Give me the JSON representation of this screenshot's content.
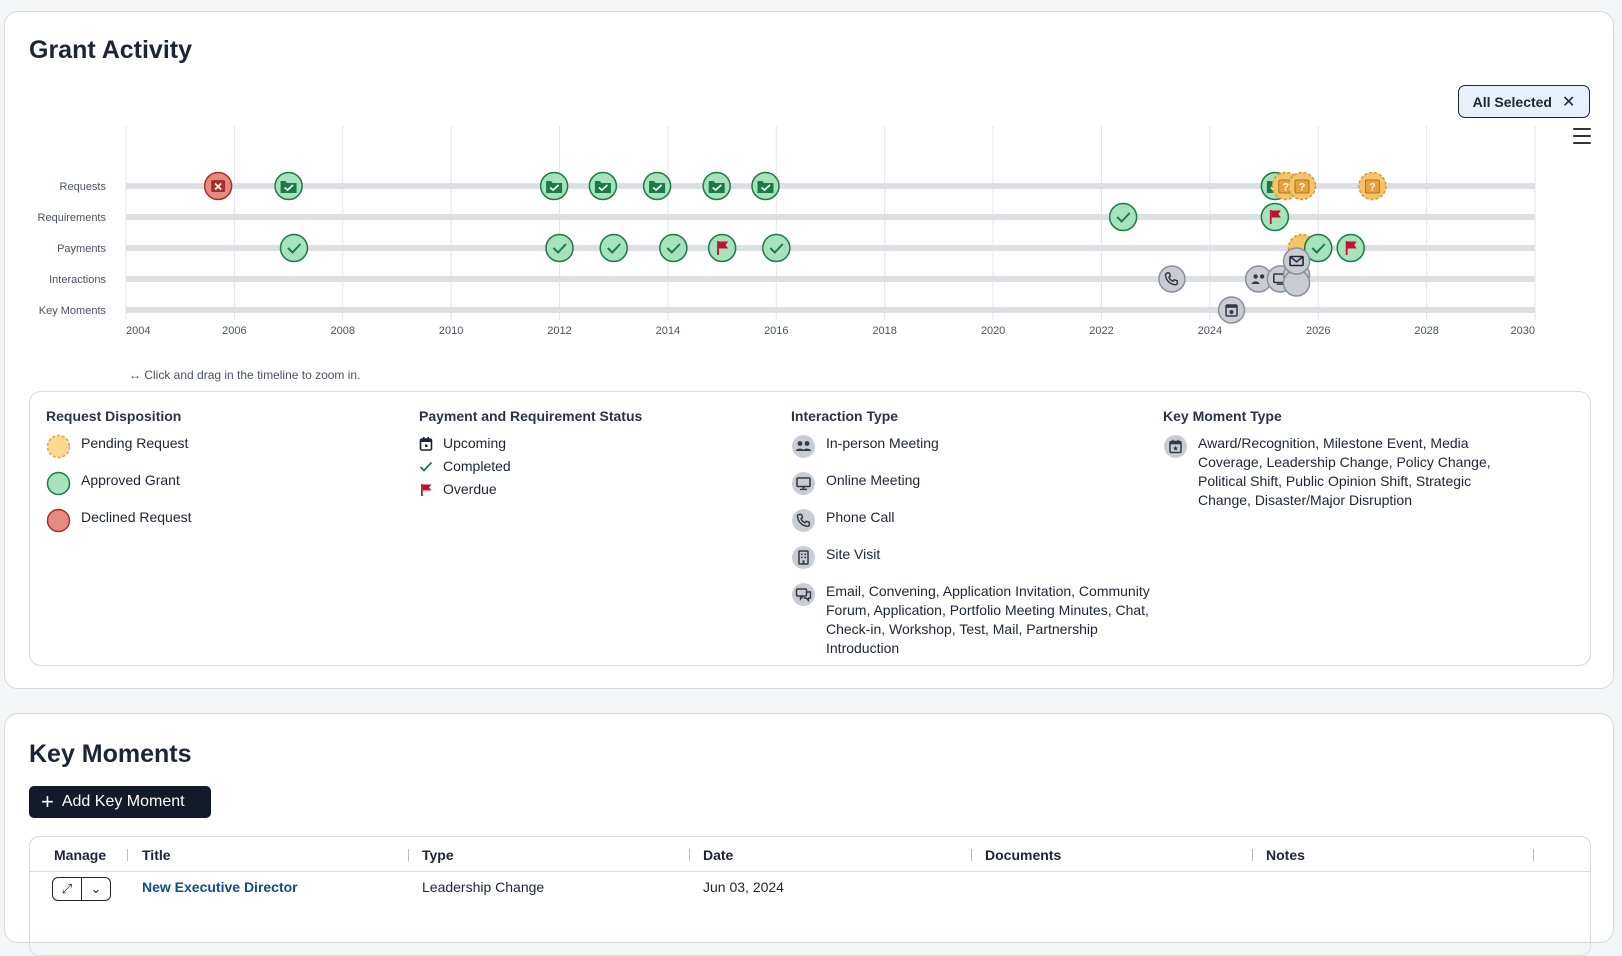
{
  "grant_activity": {
    "title": "Grant Activity",
    "filter_chip": {
      "label": "All Selected",
      "close_glyph": "✕"
    },
    "menu_icon": "hamburger-menu-icon",
    "zoom_hint": "↔ Click and drag in the timeline to zoom in.",
    "timeline": {
      "x_range": [
        2004,
        2030
      ],
      "x_ticks": [
        "2004",
        "2006",
        "2008",
        "2010",
        "2012",
        "2014",
        "2016",
        "2018",
        "2020",
        "2022",
        "2024",
        "2026",
        "2028",
        "2030"
      ],
      "rows": [
        "Requests",
        "Requirements",
        "Payments",
        "Interactions",
        "Key Moments"
      ],
      "colors": {
        "approved_fill": "#a6e3bd",
        "approved_stroke": "#1b7a46",
        "pending_fill": "#f5c46a",
        "pending_stroke": "#d9952e",
        "declined_fill": "#e58a7e",
        "declined_stroke": "#a8302a",
        "interaction_fill": "#c9cdd3",
        "interaction_stroke": "#8a9099",
        "flag": "#c4102f",
        "track": "#dcdfe3"
      },
      "events": [
        {
          "row": "Requests",
          "year": 2005.7,
          "kind": "declined",
          "icon": "declined-x-icon"
        },
        {
          "row": "Requests",
          "year": 2007.0,
          "kind": "approved",
          "icon": "folder-check-icon"
        },
        {
          "row": "Requests",
          "year": 2011.9,
          "kind": "approved",
          "icon": "folder-check-icon"
        },
        {
          "row": "Requests",
          "year": 2012.8,
          "kind": "approved",
          "icon": "folder-check-icon"
        },
        {
          "row": "Requests",
          "year": 2013.8,
          "kind": "approved",
          "icon": "folder-check-icon"
        },
        {
          "row": "Requests",
          "year": 2014.9,
          "kind": "approved",
          "icon": "folder-check-icon"
        },
        {
          "row": "Requests",
          "year": 2015.8,
          "kind": "approved",
          "icon": "folder-check-icon"
        },
        {
          "row": "Requests",
          "year": 2025.2,
          "kind": "approved",
          "icon": "folder-check-icon"
        },
        {
          "row": "Requests",
          "year": 2025.4,
          "kind": "pending",
          "icon": "question-icon"
        },
        {
          "row": "Requests",
          "year": 2025.7,
          "kind": "pending",
          "icon": "question-icon"
        },
        {
          "row": "Requests",
          "year": 2027.0,
          "kind": "pending",
          "icon": "question-icon"
        },
        {
          "row": "Requirements",
          "year": 2022.4,
          "kind": "completed",
          "icon": "check-icon"
        },
        {
          "row": "Requirements",
          "year": 2025.2,
          "kind": "overdue",
          "icon": "flag-icon"
        },
        {
          "row": "Payments",
          "year": 2007.1,
          "kind": "completed",
          "icon": "check-icon"
        },
        {
          "row": "Payments",
          "year": 2012.0,
          "kind": "completed",
          "icon": "check-icon"
        },
        {
          "row": "Payments",
          "year": 2013.0,
          "kind": "completed",
          "icon": "check-icon"
        },
        {
          "row": "Payments",
          "year": 2014.1,
          "kind": "completed",
          "icon": "check-icon"
        },
        {
          "row": "Payments",
          "year": 2015.0,
          "kind": "overdue",
          "icon": "flag-icon"
        },
        {
          "row": "Payments",
          "year": 2016.0,
          "kind": "completed",
          "icon": "check-icon"
        },
        {
          "row": "Payments",
          "year": 2025.7,
          "kind": "pending",
          "icon": "payment-pending-icon"
        },
        {
          "row": "Payments",
          "year": 2026.0,
          "kind": "completed",
          "icon": "check-icon"
        },
        {
          "row": "Payments",
          "year": 2026.6,
          "kind": "overdue",
          "icon": "flag-icon"
        },
        {
          "row": "Interactions",
          "year": 2023.3,
          "kind": "interaction",
          "icon": "phone-icon"
        },
        {
          "row": "Interactions",
          "year": 2024.9,
          "kind": "interaction",
          "icon": "people-icon"
        },
        {
          "row": "Interactions",
          "year": 2025.3,
          "kind": "interaction",
          "icon": "monitor-icon"
        },
        {
          "row": "Interactions",
          "year": 2025.6,
          "kind": "interaction",
          "icon": "stacked-icon"
        },
        {
          "row": "Interactions",
          "year": 2025.6,
          "kind": "interaction",
          "icon": "stacked-icon"
        },
        {
          "row": "Interactions",
          "year": 2025.6,
          "kind": "interaction",
          "icon": "envelope-icon"
        },
        {
          "row": "Key Moments",
          "year": 2024.4,
          "kind": "interaction",
          "icon": "calendar-star-icon"
        }
      ]
    },
    "legend": {
      "request_disposition": {
        "title": "Request Disposition",
        "items": [
          {
            "label": "Pending Request",
            "icon": "pending-circle-icon"
          },
          {
            "label": "Approved Grant",
            "icon": "approved-circle-icon"
          },
          {
            "label": "Declined Request",
            "icon": "declined-circle-icon"
          }
        ]
      },
      "payment_status": {
        "title": "Payment and Requirement Status",
        "items": [
          {
            "label": "Upcoming",
            "icon": "calendar-icon"
          },
          {
            "label": "Completed",
            "icon": "check-icon"
          },
          {
            "label": "Overdue",
            "icon": "flag-icon"
          }
        ]
      },
      "interaction_type": {
        "title": "Interaction Type",
        "items": [
          {
            "label": "In-person Meeting",
            "icon": "people-icon"
          },
          {
            "label": "Online Meeting",
            "icon": "monitor-icon"
          },
          {
            "label": "Phone Call",
            "icon": "phone-icon"
          },
          {
            "label": "Site Visit",
            "icon": "building-icon"
          },
          {
            "label": "Email, Convening, Application Invitation, Community Forum, Application, Portfolio Meeting Minutes, Chat, Check-in, Workshop, Test, Mail, Partnership Introduction",
            "icon": "chat-icon"
          }
        ]
      },
      "key_moment_type": {
        "title": "Key Moment Type",
        "items": [
          {
            "label": "Award/Recognition, Milestone Event, Media Coverage, Leadership Change, Policy Change, Political Shift, Public Opinion Shift, Strategic Change, Disaster/Major Disruption",
            "icon": "calendar-star-icon"
          }
        ]
      }
    }
  },
  "key_moments": {
    "title": "Key Moments",
    "add_button_label": "Add Key Moment",
    "columns": [
      "Manage",
      "Title",
      "Type",
      "Date",
      "Documents",
      "Notes"
    ],
    "rows": [
      {
        "title": "New Executive Director",
        "type": "Leadership Change",
        "date": "Jun 03, 2024",
        "documents": "",
        "notes": ""
      }
    ]
  }
}
